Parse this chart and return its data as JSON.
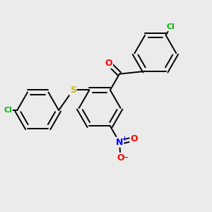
{
  "background_color": "#ebebeb",
  "bond_color": "#000000",
  "atom_colors": {
    "Cl": "#00bb00",
    "O": "#ff0000",
    "S": "#ccbb00",
    "N": "#0000ff"
  },
  "figsize": [
    3.0,
    3.0
  ],
  "dpi": 100,
  "lw": 1.4,
  "r": 0.1
}
